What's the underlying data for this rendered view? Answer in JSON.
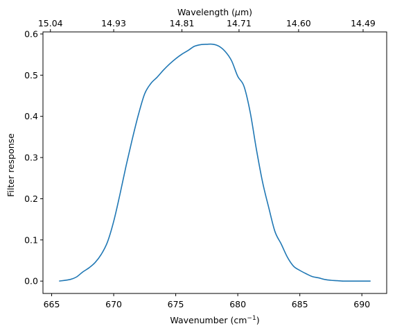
{
  "chart_data": {
    "type": "line",
    "xlabel": "Wavenumber (cm",
    "xlabel_sup": "−1",
    "xlabel_close": ")",
    "ylabel": "Filter response",
    "top_axis_label_prefix": "Wavelength (",
    "top_axis_label_mu": "μ",
    "top_axis_label_suffix": "m)",
    "xlim": [
      664.3,
      692.0
    ],
    "ylim": [
      -0.03,
      0.605
    ],
    "x_ticks": [
      665,
      670,
      675,
      680,
      685,
      690
    ],
    "x_tick_labels": [
      "665",
      "670",
      "675",
      "680",
      "685",
      "690"
    ],
    "y_ticks": [
      0.0,
      0.1,
      0.2,
      0.3,
      0.4,
      0.5,
      0.6
    ],
    "y_tick_labels": [
      "0.0",
      "0.1",
      "0.2",
      "0.3",
      "0.4",
      "0.5",
      "0.6"
    ],
    "top_ticks": [
      664.9,
      670.0,
      675.5,
      680.1,
      684.9,
      690.1
    ],
    "top_tick_labels": [
      "15.04",
      "14.93",
      "14.81",
      "14.71",
      "14.60",
      "14.49"
    ],
    "grid": false,
    "line_color": "#1f77b4",
    "series": [
      {
        "x": [
          665.6,
          666.5,
          667.0,
          667.5,
          668.0,
          668.5,
          669.0,
          669.5,
          670.0,
          670.5,
          671.0,
          671.5,
          672.0,
          672.5,
          673.0,
          673.5,
          674.0,
          674.5,
          675.0,
          675.5,
          676.0,
          676.5,
          677.0,
          677.5,
          678.0,
          678.5,
          679.0,
          679.5,
          680.0,
          680.5,
          681.0,
          681.5,
          682.0,
          682.5,
          683.0,
          683.5,
          684.0,
          684.5,
          685.0,
          685.5,
          686.0,
          686.5,
          687.0,
          687.5,
          688.0,
          688.5,
          689.0,
          689.5,
          690.0,
          690.7
        ],
        "values": [
          0.0,
          0.004,
          0.01,
          0.022,
          0.032,
          0.045,
          0.065,
          0.095,
          0.145,
          0.21,
          0.28,
          0.345,
          0.405,
          0.455,
          0.48,
          0.495,
          0.512,
          0.527,
          0.54,
          0.551,
          0.56,
          0.57,
          0.574,
          0.575,
          0.575,
          0.57,
          0.557,
          0.535,
          0.497,
          0.473,
          0.41,
          0.32,
          0.24,
          0.178,
          0.12,
          0.09,
          0.058,
          0.036,
          0.026,
          0.018,
          0.011,
          0.008,
          0.004,
          0.002,
          0.001,
          0.0,
          0.0,
          0.0,
          0.0,
          0.0
        ]
      }
    ]
  }
}
